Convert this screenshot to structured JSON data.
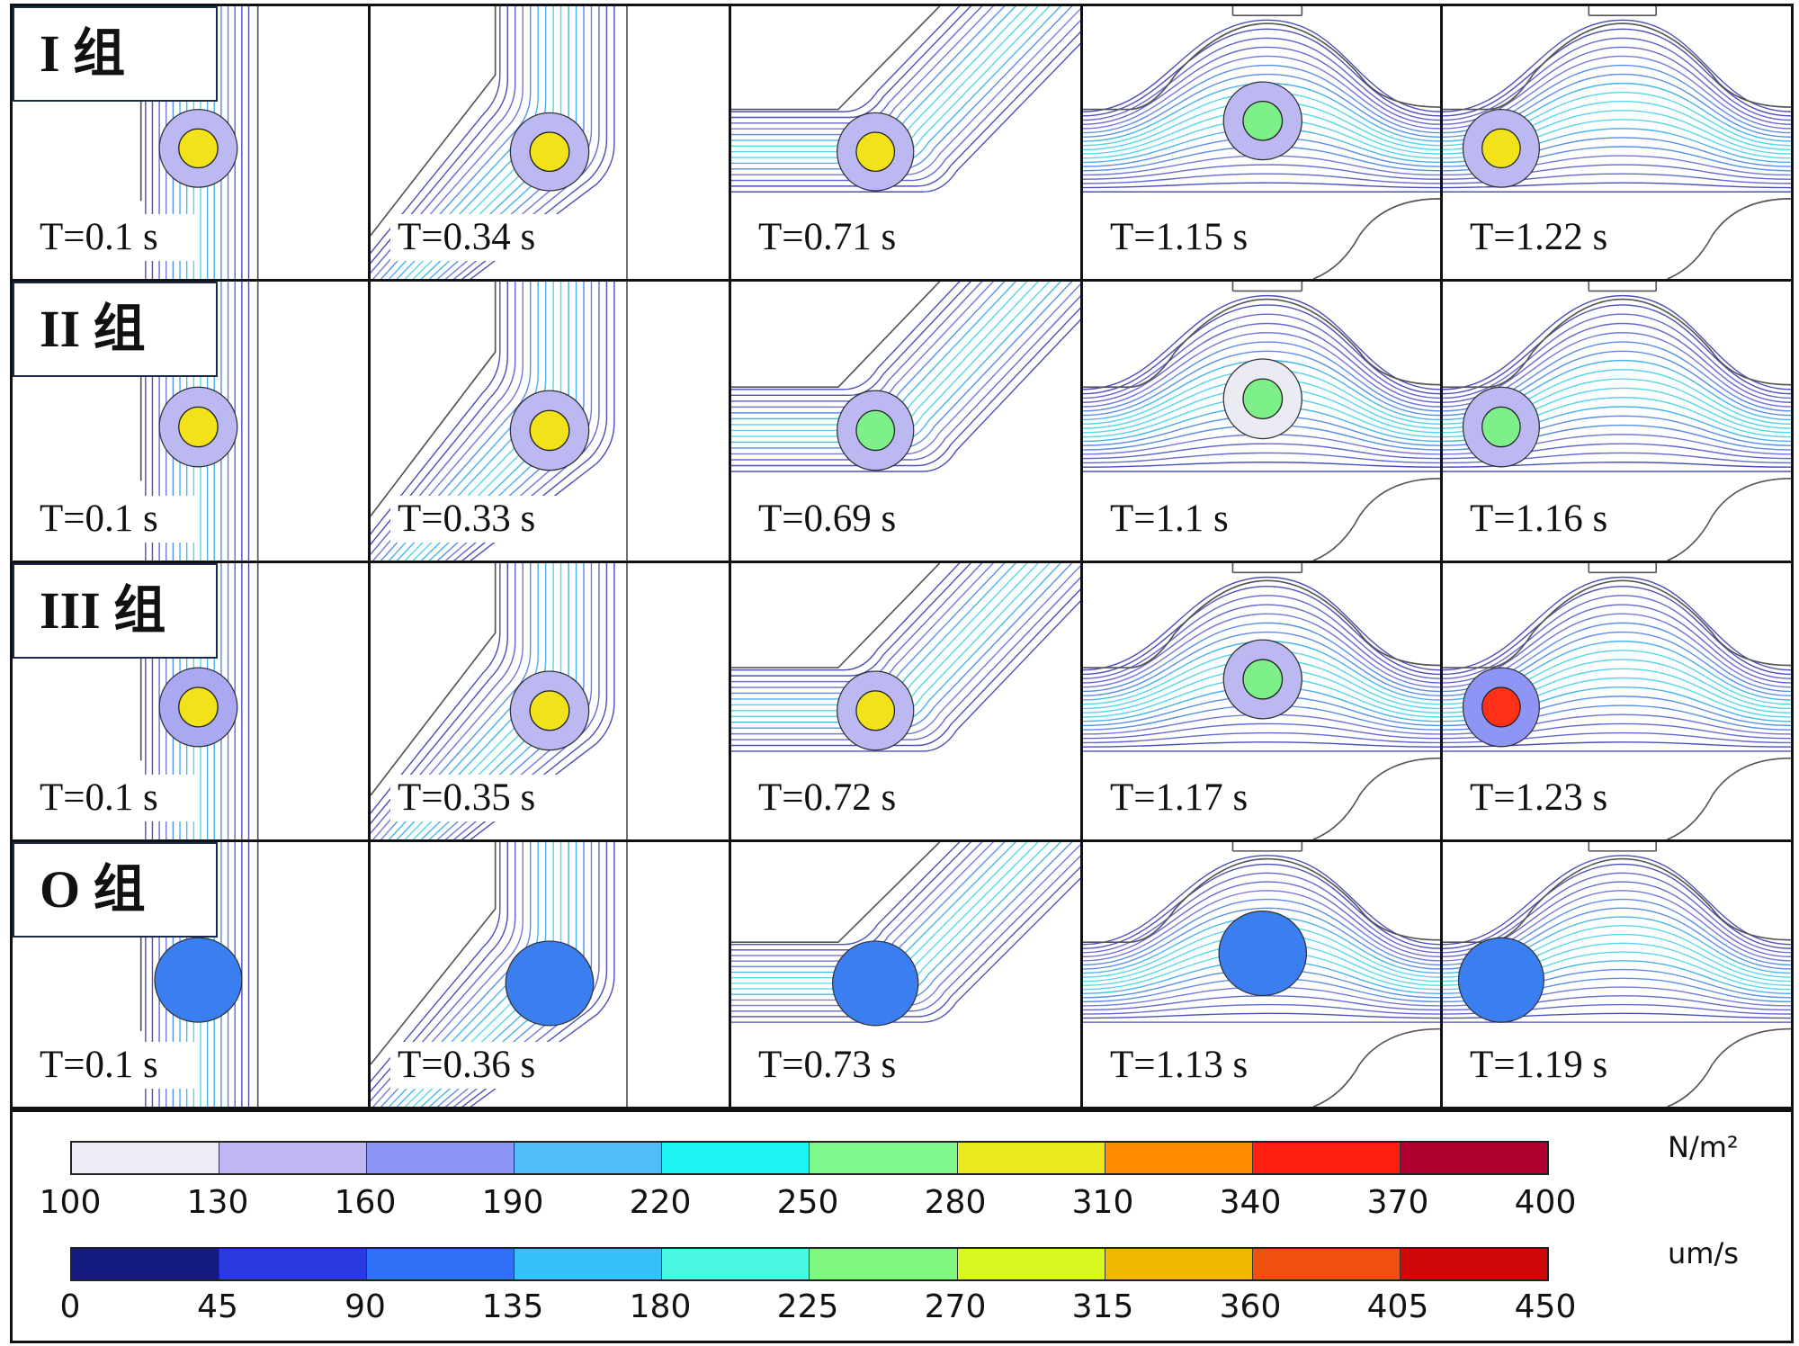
{
  "groups": [
    {
      "label": "I  组",
      "panels": [
        {
          "time": "T=0.1 s",
          "ring": "#bcb8f2",
          "core": "#f2e21a"
        },
        {
          "time": "T=0.34 s",
          "ring": "#bcb8f2",
          "core": "#f2e21a"
        },
        {
          "time": "T=0.71 s",
          "ring": "#bcb8f2",
          "core": "#f2e21a"
        },
        {
          "time": "T=1.15 s",
          "ring": "#bcb8f2",
          "core": "#7ef08a"
        },
        {
          "time": "T=1.22 s",
          "ring": "#bcb8f2",
          "core": "#f2e21a"
        }
      ]
    },
    {
      "label": "II  组",
      "panels": [
        {
          "time": "T=0.1 s",
          "ring": "#bcb8f2",
          "core": "#f2e21a"
        },
        {
          "time": "T=0.33 s",
          "ring": "#bcb8f2",
          "core": "#f2e21a"
        },
        {
          "time": "T=0.69 s",
          "ring": "#bcb8f2",
          "core": "#7ef08a"
        },
        {
          "time": "T=1.1 s",
          "ring": "#ebebf3",
          "core": "#7ef08a"
        },
        {
          "time": "T=1.16 s",
          "ring": "#bcb8f2",
          "core": "#7ef08a"
        }
      ]
    },
    {
      "label": "III  组",
      "panels": [
        {
          "time": "T=0.1 s",
          "ring": "#a9a8f0",
          "core": "#f2e21a"
        },
        {
          "time": "T=0.35 s",
          "ring": "#bcb8f2",
          "core": "#f2e21a"
        },
        {
          "time": "T=0.72 s",
          "ring": "#bcb8f2",
          "core": "#f2e21a"
        },
        {
          "time": "T=1.17 s",
          "ring": "#bcb8f2",
          "core": "#7ef08a"
        },
        {
          "time": "T=1.23 s",
          "ring": "#8f95f4",
          "core": "#ff3018"
        }
      ]
    },
    {
      "label": "O  组",
      "panels": [
        {
          "time": "T=0.1 s",
          "ring": "#3a7ef0",
          "core": "#3a7ef0"
        },
        {
          "time": "T=0.36 s",
          "ring": "#3a7ef0",
          "core": "#3a7ef0"
        },
        {
          "time": "T=0.73 s",
          "ring": "#3a7ef0",
          "core": "#3a7ef0"
        },
        {
          "time": "T=1.13 s",
          "ring": "#3a7ef0",
          "core": "#3a7ef0"
        },
        {
          "time": "T=1.19 s",
          "ring": "#3a7ef0",
          "core": "#3a7ef0"
        }
      ]
    }
  ],
  "legend": {
    "stress": {
      "unit": "N/m²",
      "ticks": [
        "100",
        "130",
        "160",
        "190",
        "220",
        "250",
        "280",
        "310",
        "340",
        "370",
        "400"
      ],
      "colors": [
        "#ececf4",
        "#c0b8f4",
        "#8f95f4",
        "#4fbef8",
        "#1ef4f4",
        "#7ef88a",
        "#eaea20",
        "#ff8c00",
        "#ff2010",
        "#b00030"
      ]
    },
    "velocity": {
      "unit": "um/s",
      "ticks": [
        "0",
        "45",
        "90",
        "135",
        "180",
        "225",
        "270",
        "315",
        "360",
        "405",
        "450"
      ],
      "colors": [
        "#141a80",
        "#2a3ae0",
        "#3070f8",
        "#38c0f8",
        "#48f8e0",
        "#80f880",
        "#d8f820",
        "#f0b800",
        "#f05010",
        "#d00808"
      ]
    }
  },
  "streamline_colors": [
    "#4b4fb8",
    "#6468d0",
    "#7479dc",
    "#5a8ee8",
    "#48b4ec",
    "#56d6ea"
  ]
}
